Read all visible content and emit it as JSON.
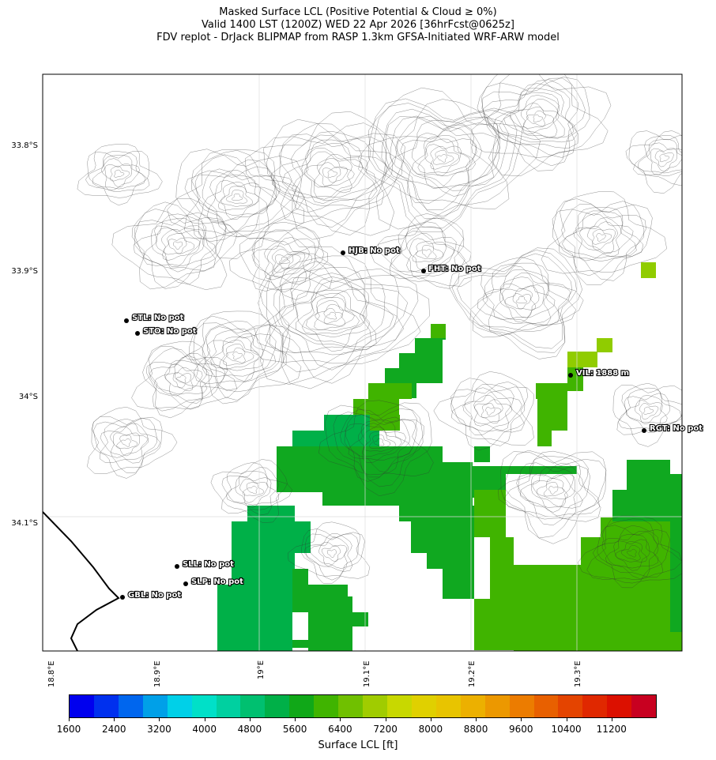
{
  "title": {
    "line1": "Masked Surface LCL (Positive Potential & Cloud ≥ 0%)",
    "line2": "Valid 1400 LST (1200Z) WED 22 Apr 2026 [36hrFcst@0625z]",
    "line3": "FDV replot - DrJack BLIPMAP from RASP 1.3km GFSA-Initiated WRF-ARW model"
  },
  "lat_labels": [
    "33.8°S",
    "33.9°S",
    "34°S",
    "34.1°S"
  ],
  "lon_labels": [
    "18.8°E",
    "18.9°E",
    "19°E",
    "19.1°E",
    "19.2°E",
    "19.3°E"
  ],
  "sites": [
    {
      "code": "HJB",
      "label": "HJB: No pot"
    },
    {
      "code": "FHT",
      "label": "FHT: No pot"
    },
    {
      "code": "STL",
      "label": "STL: No pot"
    },
    {
      "code": "STO",
      "label": "STO: No pot"
    },
    {
      "code": "VIL",
      "label": "VIL: 1888 m"
    },
    {
      "code": "RGT",
      "label": "RGT: No pot"
    },
    {
      "code": "SLL",
      "label": "SLL: No pot"
    },
    {
      "code": "SLP",
      "label": "SLP: No pot"
    },
    {
      "code": "GBL",
      "label": "GBL: No pot"
    }
  ],
  "colorbar": {
    "label": "Surface LCL [ft]",
    "ticks": [
      "1600",
      "2400",
      "3200",
      "4000",
      "4800",
      "5600",
      "6400",
      "7200",
      "8000",
      "8800",
      "9600",
      "10400",
      "11200"
    ],
    "colors": [
      "#0000ee",
      "#0030ee",
      "#0066ee",
      "#00a0e8",
      "#00d0e8",
      "#00e0c8",
      "#00d0a0",
      "#00c070",
      "#00b048",
      "#10a818",
      "#40b400",
      "#70c000",
      "#a0cc00",
      "#c8d800",
      "#e0d000",
      "#e8c400",
      "#ecb000",
      "#ec9800",
      "#ec7c00",
      "#e86000",
      "#e44400",
      "#e02800",
      "#dc1000",
      "#c80020"
    ]
  },
  "legend": {
    "field_colors": {
      "green_dark": "#10a820",
      "green_mid": "#00b048",
      "green_light": "#40b400",
      "yellow_green": "#90cc00"
    }
  }
}
